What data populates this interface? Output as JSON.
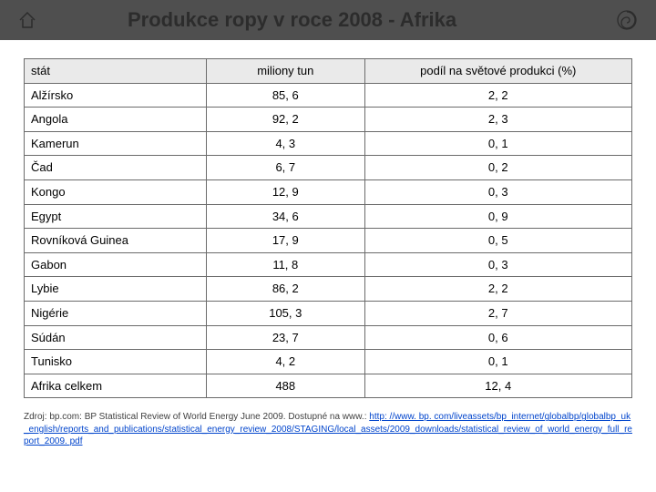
{
  "header": {
    "title": "Produkce ropy v roce 2008 - Afrika"
  },
  "table": {
    "columns": [
      "stát",
      "miliony tun",
      "podíl na světové produkci (%)"
    ],
    "col_align": [
      "left",
      "center",
      "center"
    ],
    "col_widths": [
      "30%",
      "26%",
      "44%"
    ],
    "rows": [
      [
        "Alžírsko",
        "85, 6",
        "2, 2"
      ],
      [
        "Angola",
        "92, 2",
        "2, 3"
      ],
      [
        "Kamerun",
        "4, 3",
        "0, 1"
      ],
      [
        "Čad",
        "6, 7",
        "0, 2"
      ],
      [
        "Kongo",
        "12, 9",
        "0, 3"
      ],
      [
        "Egypt",
        "34, 6",
        "0, 9"
      ],
      [
        "Rovníková Guinea",
        "17, 9",
        "0, 5"
      ],
      [
        "Gabon",
        "11, 8",
        "0, 3"
      ],
      [
        "Lybie",
        "86, 2",
        "2, 2"
      ],
      [
        "Nigérie",
        "105, 3",
        "2, 7"
      ],
      [
        "Súdán",
        "23, 7",
        "0, 6"
      ],
      [
        "Tunisko",
        "4, 2",
        "0, 1"
      ],
      [
        "Afrika celkem",
        "488",
        "12, 4"
      ]
    ]
  },
  "source": {
    "prefix": "Zdroj: bp.com: BP Statistical Review of World Energy June 2009. Dostupné na www.: ",
    "link": "http: //www. bp. com/liveassets/bp_internet/globalbp/globalbp_uk_english/reports_and_publications/statistical_energy_review_2008/STAGING/local_assets/2009_downloads/statistical_review_of_world_energy_full_report_2009. pdf"
  },
  "colors": {
    "header_bg": "#4f4f4f",
    "table_header_bg": "#eaeaea",
    "border": "#6b6b6b",
    "link": "#0044cc",
    "icon_stroke": "#2c2c2c"
  }
}
